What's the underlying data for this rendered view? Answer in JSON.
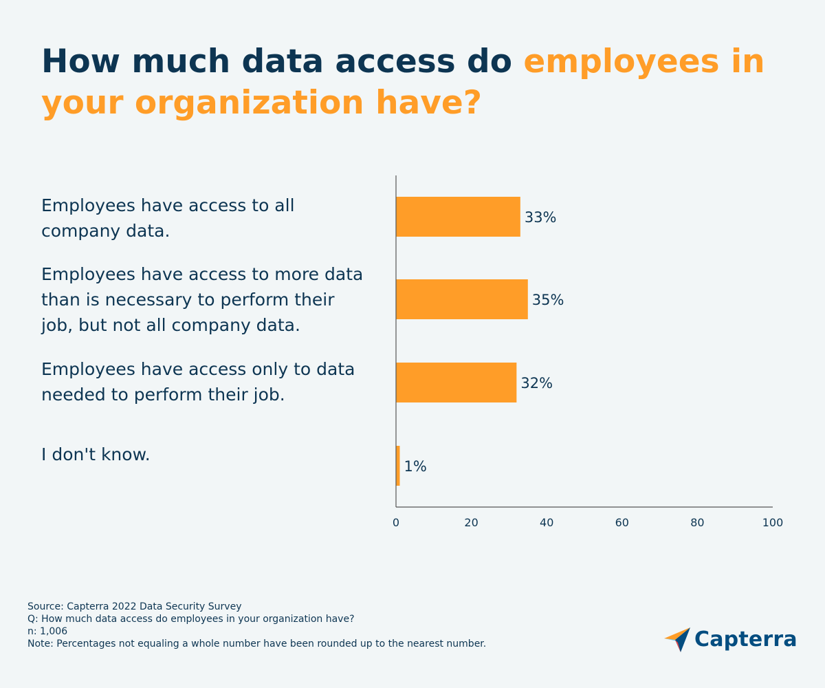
{
  "title": {
    "part1": "How much data access do ",
    "part2": "employees in your organization have?"
  },
  "colors": {
    "title_dark": "#0d3552",
    "accent": "#ff9d28",
    "bar": "#ff9d28",
    "axis": "#555555",
    "background": "#f2f6f7"
  },
  "chart_data": {
    "type": "bar",
    "orientation": "horizontal",
    "categories": [
      "Employees have access to all company data.",
      "Employees have access to more data than is necessary to perform their job, but not all company data.",
      "Employees have access only to data needed to perform their job.",
      "I don't know."
    ],
    "values": [
      33,
      35,
      32,
      1
    ],
    "data_labels": [
      "33%",
      "35%",
      "32%",
      "1%"
    ],
    "xlim": [
      0,
      100
    ],
    "xticks": [
      0,
      20,
      40,
      60,
      80,
      100
    ],
    "grid": false
  },
  "footnote": {
    "source": "Source: Capterra 2022 Data Security Survey",
    "question": "Q: How much data access do employees in your organization have?",
    "n": "n: 1,006",
    "note": "Note: Percentages not equaling a whole number have been rounded up to the nearest number."
  },
  "logo": {
    "name": "Capterra",
    "icon": "capterra-arrow-icon"
  }
}
